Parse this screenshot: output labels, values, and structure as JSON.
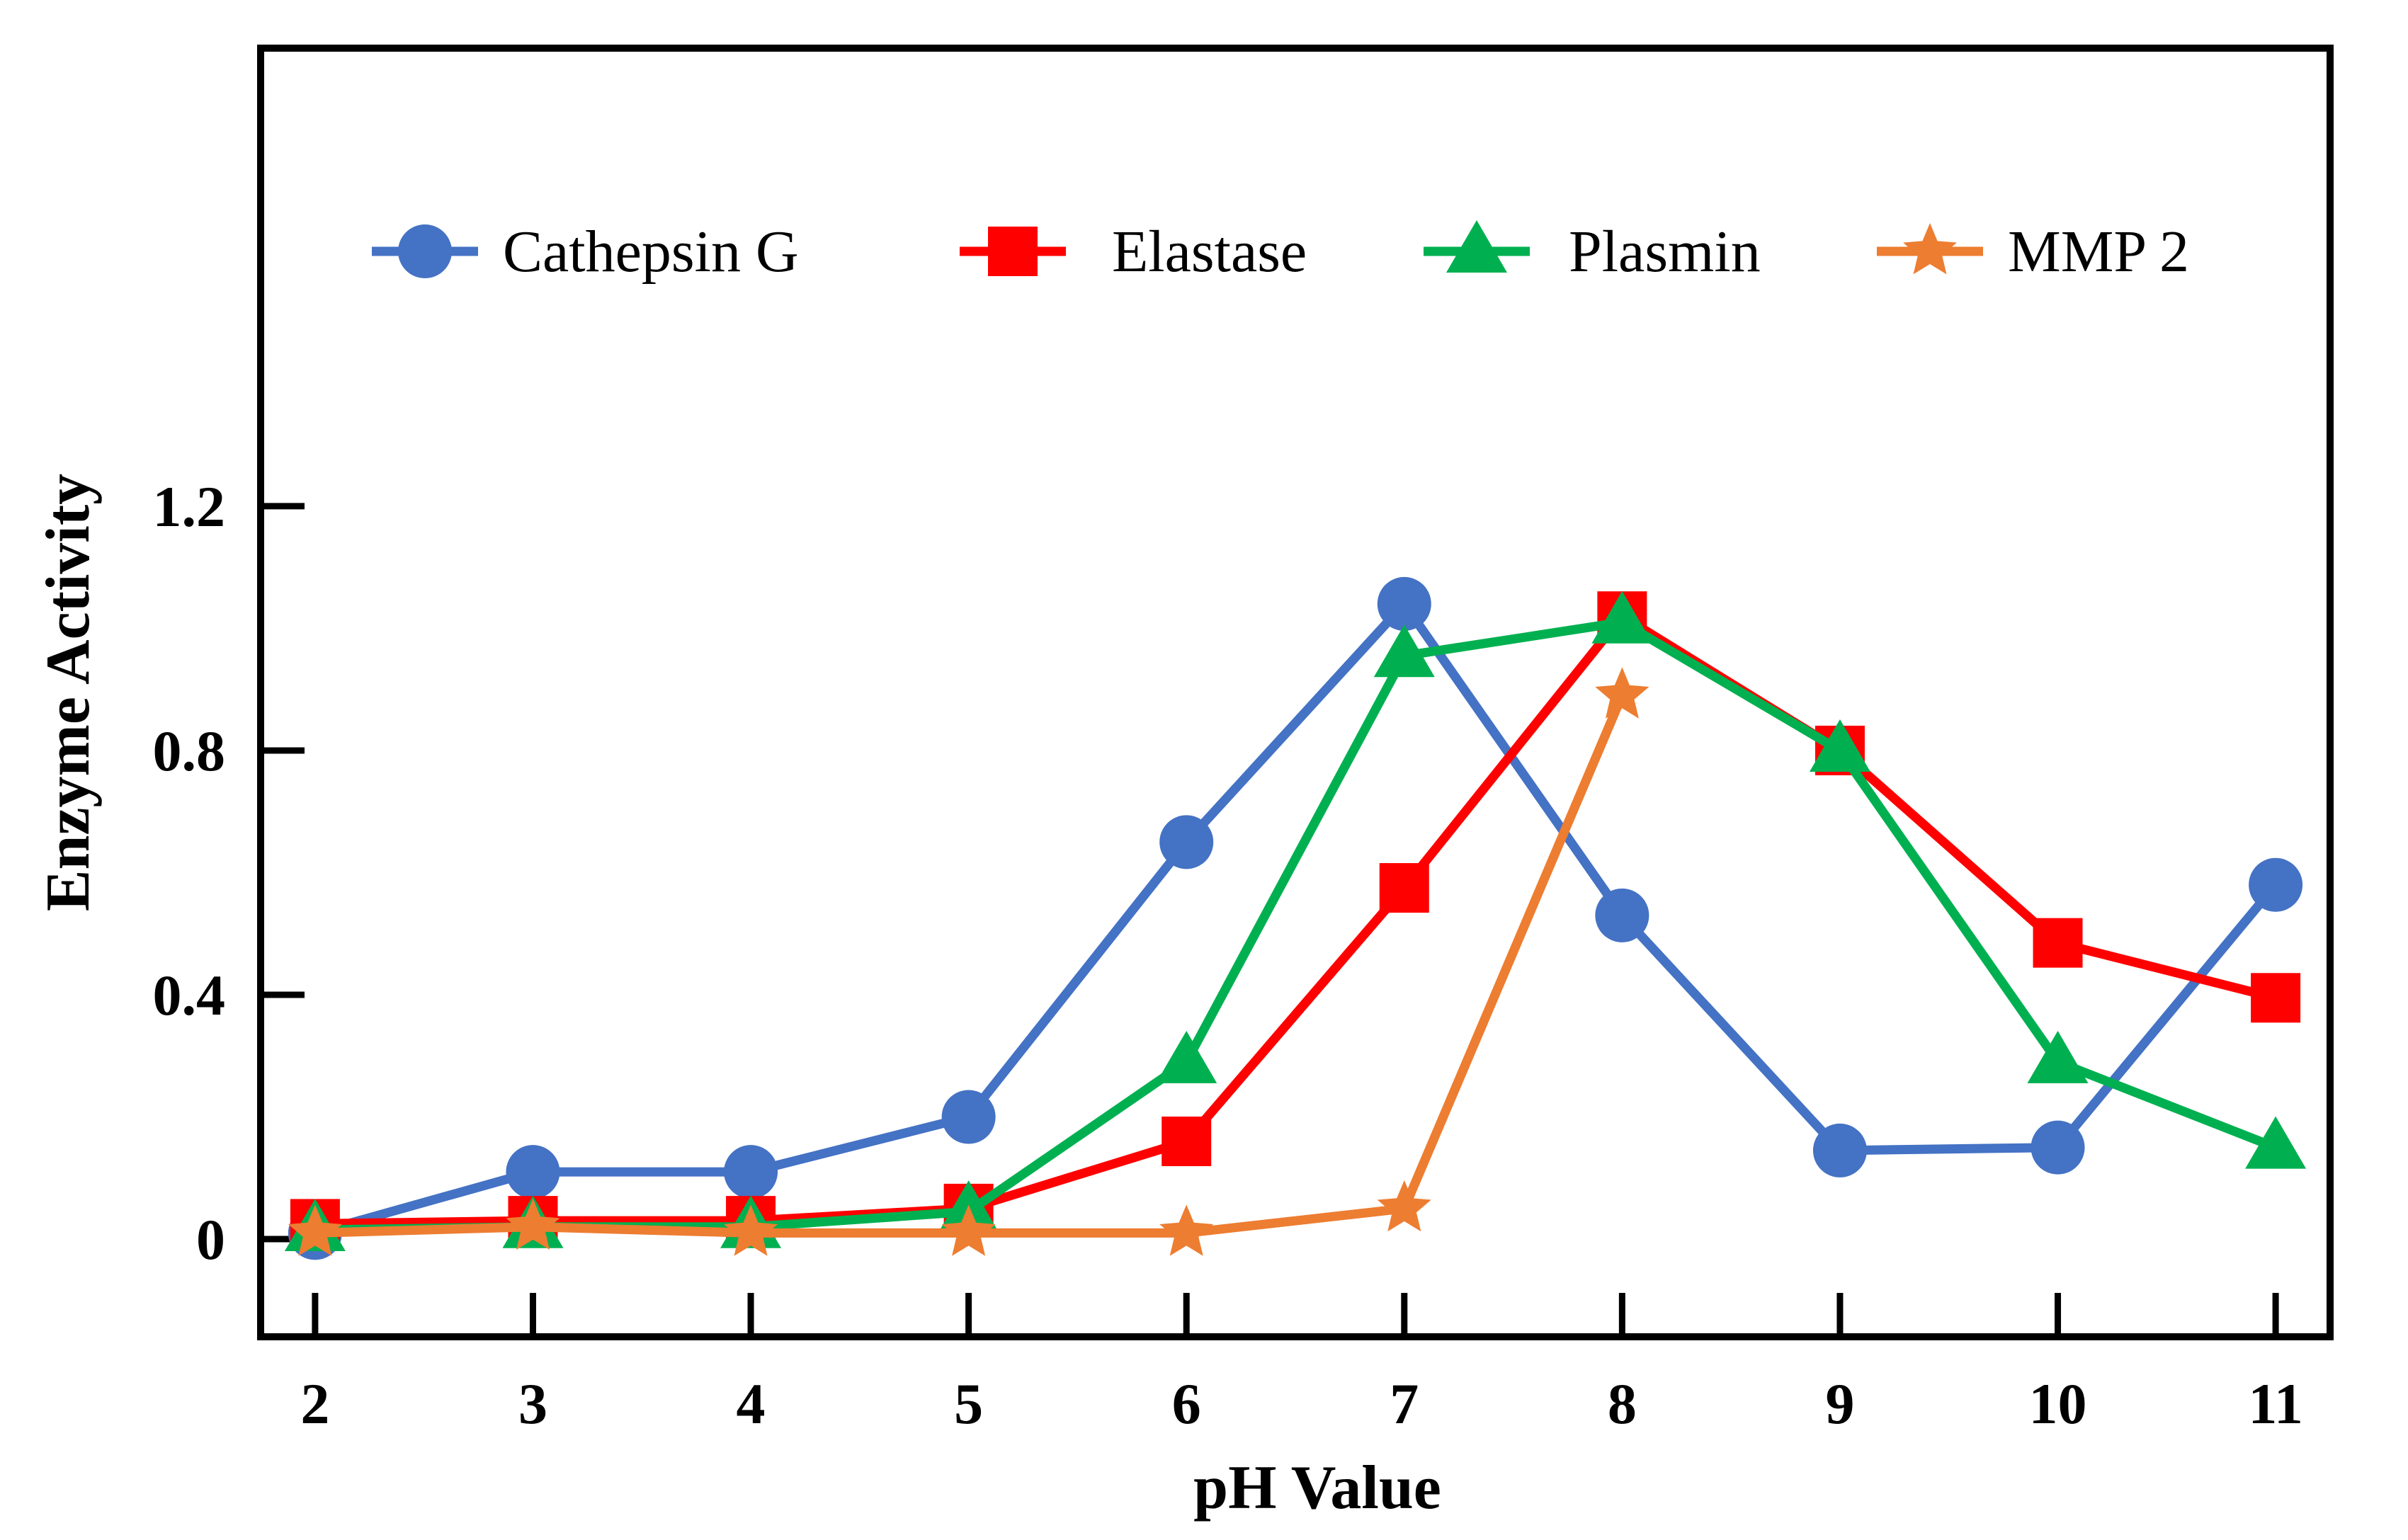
{
  "chart_data": {
    "type": "line",
    "title": "",
    "xlabel": "pH Value",
    "ylabel": "Enzyme Activity",
    "x": [
      2,
      3,
      4,
      5,
      6,
      7,
      8,
      9,
      10,
      11
    ],
    "xlim": [
      1.75,
      11.25
    ],
    "ylim": [
      -0.16,
      1.95
    ],
    "x_ticks": [
      2,
      3,
      4,
      5,
      6,
      7,
      8,
      9,
      10,
      11
    ],
    "x_tick_labels": [
      "2",
      "3",
      "4",
      "5",
      "6",
      "7",
      "8",
      "9",
      "10",
      "11"
    ],
    "y_ticks": [
      0,
      0.4,
      0.8,
      1.2
    ],
    "y_tick_labels": [
      "0",
      "0.4",
      "0.8",
      "1.2"
    ],
    "grid": false,
    "legend_position": "top",
    "series": [
      {
        "name": "Cathepsin G",
        "color": "#4472C4",
        "marker": "circle",
        "values": [
          0.01,
          0.11,
          0.11,
          0.2,
          0.65,
          1.04,
          0.53,
          0.145,
          0.15,
          0.58
        ]
      },
      {
        "name": "Elastase",
        "color": "#FF0000",
        "marker": "square",
        "values": [
          0.025,
          0.03,
          0.03,
          0.05,
          0.16,
          0.575,
          1.02,
          0.8,
          0.485,
          0.395
        ]
      },
      {
        "name": "Plasmin",
        "color": "#00B050",
        "marker": "triangle",
        "values": [
          0.015,
          0.02,
          0.02,
          0.045,
          0.29,
          0.955,
          1.01,
          0.8,
          0.29,
          0.15
        ]
      },
      {
        "name": "MMP 2",
        "color": "#ED7D31",
        "marker": "star",
        "values": [
          0.01,
          0.02,
          0.01,
          0.01,
          0.01,
          0.05,
          0.89,
          null,
          null,
          null
        ]
      }
    ]
  }
}
